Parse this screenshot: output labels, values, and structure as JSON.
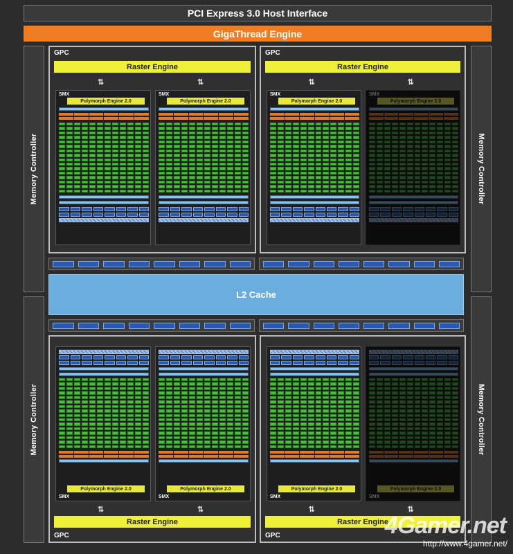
{
  "pcie_label": "PCI Express 3.0 Host Interface",
  "gigathread_label": "GigaThread Engine",
  "memory_controller_label": "Memory Controller",
  "l2_label": "L2 Cache",
  "gpc_label": "GPC",
  "raster_label": "Raster Engine",
  "smx_label": "SMX",
  "polymorph_label": "Polymorph Engine 2.0",
  "arrow_glyph": "⇅",
  "watermark": {
    "logo": "4Gamer.net",
    "url": "http://www.4gamer.net/"
  },
  "colors": {
    "core": "#45c236",
    "polymorph": "#e8e83a",
    "raster": "#eef03a",
    "gigathread": "#f07d22",
    "l2": "#6aaee0",
    "disabled_smx": "dimmed"
  },
  "gpcs": [
    {
      "id": "top-left",
      "smx": [
        {
          "enabled": true
        },
        {
          "enabled": true
        }
      ]
    },
    {
      "id": "top-right",
      "smx": [
        {
          "enabled": true
        },
        {
          "enabled": false
        }
      ]
    },
    {
      "id": "bottom-left",
      "smx": [
        {
          "enabled": true
        },
        {
          "enabled": true
        }
      ]
    },
    {
      "id": "bottom-right",
      "smx": [
        {
          "enabled": true
        },
        {
          "enabled": false
        }
      ]
    }
  ]
}
